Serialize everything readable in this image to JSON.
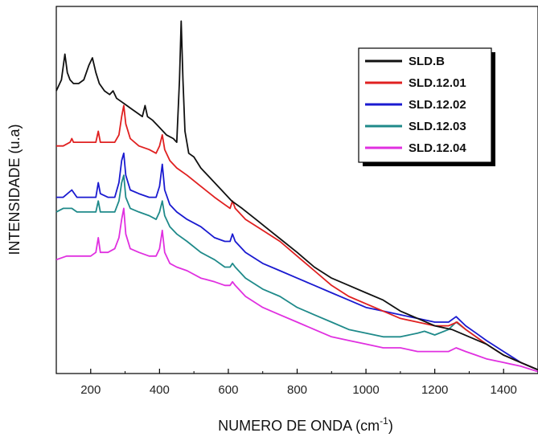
{
  "chart_data": {
    "type": "line",
    "xlabel": "NUMERO DE ONDA (cm",
    "xlabel_sup": "-1",
    "xlabel_suffix": ")",
    "ylabel": "INTENSIDADE (u.a)",
    "xlim": [
      100,
      1500
    ],
    "ylim": [
      0,
      100
    ],
    "y_ticks_shown": false,
    "x_ticks": [
      200,
      400,
      600,
      800,
      1000,
      1200,
      1400
    ],
    "x_tick_labels": [
      "200",
      "400",
      "600",
      "800",
      "1000",
      "1200",
      "1400"
    ],
    "grid": false,
    "legend_position": "top-right",
    "series": [
      {
        "name": "SLD.B",
        "color": "#111111",
        "points": [
          [
            100,
            77
          ],
          [
            115,
            80
          ],
          [
            125,
            87
          ],
          [
            132,
            82
          ],
          [
            140,
            80
          ],
          [
            150,
            79
          ],
          [
            165,
            79
          ],
          [
            180,
            80
          ],
          [
            195,
            84
          ],
          [
            205,
            86
          ],
          [
            215,
            82
          ],
          [
            225,
            79
          ],
          [
            240,
            77
          ],
          [
            255,
            76
          ],
          [
            265,
            77
          ],
          [
            275,
            75
          ],
          [
            290,
            74
          ],
          [
            305,
            73
          ],
          [
            320,
            72
          ],
          [
            335,
            71
          ],
          [
            350,
            70
          ],
          [
            358,
            73
          ],
          [
            365,
            70
          ],
          [
            380,
            69
          ],
          [
            400,
            67
          ],
          [
            420,
            65
          ],
          [
            440,
            64
          ],
          [
            450,
            63
          ],
          [
            458,
            80
          ],
          [
            463,
            96
          ],
          [
            468,
            80
          ],
          [
            474,
            66
          ],
          [
            485,
            60
          ],
          [
            500,
            59
          ],
          [
            520,
            56
          ],
          [
            550,
            53
          ],
          [
            580,
            50
          ],
          [
            610,
            47
          ],
          [
            640,
            45
          ],
          [
            680,
            42
          ],
          [
            720,
            39
          ],
          [
            760,
            36
          ],
          [
            800,
            33
          ],
          [
            850,
            29
          ],
          [
            900,
            26
          ],
          [
            950,
            24
          ],
          [
            1000,
            22
          ],
          [
            1050,
            20
          ],
          [
            1100,
            17
          ],
          [
            1150,
            15
          ],
          [
            1200,
            13
          ],
          [
            1250,
            12
          ],
          [
            1300,
            10
          ],
          [
            1350,
            8
          ],
          [
            1400,
            5
          ],
          [
            1450,
            3
          ],
          [
            1500,
            1
          ]
        ]
      },
      {
        "name": "SLD.12.01",
        "color": "#e02020",
        "points": [
          [
            100,
            62
          ],
          [
            120,
            62
          ],
          [
            140,
            63
          ],
          [
            145,
            64
          ],
          [
            150,
            63
          ],
          [
            170,
            63
          ],
          [
            200,
            63
          ],
          [
            215,
            63
          ],
          [
            222,
            66
          ],
          [
            228,
            63
          ],
          [
            250,
            63
          ],
          [
            270,
            63
          ],
          [
            282,
            65
          ],
          [
            290,
            70
          ],
          [
            296,
            73
          ],
          [
            302,
            68
          ],
          [
            315,
            64
          ],
          [
            340,
            62
          ],
          [
            370,
            61
          ],
          [
            390,
            60
          ],
          [
            400,
            62
          ],
          [
            408,
            65
          ],
          [
            415,
            61
          ],
          [
            430,
            58
          ],
          [
            450,
            56
          ],
          [
            480,
            54
          ],
          [
            520,
            51
          ],
          [
            560,
            48
          ],
          [
            590,
            46
          ],
          [
            605,
            45
          ],
          [
            612,
            47
          ],
          [
            620,
            45
          ],
          [
            650,
            42
          ],
          [
            700,
            39
          ],
          [
            750,
            36
          ],
          [
            800,
            32
          ],
          [
            850,
            28
          ],
          [
            900,
            24
          ],
          [
            950,
            21
          ],
          [
            1000,
            19
          ],
          [
            1050,
            17
          ],
          [
            1100,
            15
          ],
          [
            1150,
            14
          ],
          [
            1200,
            13
          ],
          [
            1240,
            13
          ],
          [
            1265,
            14
          ],
          [
            1290,
            12
          ],
          [
            1320,
            10
          ],
          [
            1350,
            8
          ],
          [
            1400,
            5
          ],
          [
            1450,
            3
          ],
          [
            1500,
            1
          ]
        ]
      },
      {
        "name": "SLD.12.02",
        "color": "#1a1ad0",
        "points": [
          [
            100,
            48
          ],
          [
            120,
            48
          ],
          [
            145,
            50
          ],
          [
            160,
            48
          ],
          [
            200,
            48
          ],
          [
            215,
            48
          ],
          [
            222,
            52
          ],
          [
            228,
            49
          ],
          [
            250,
            48
          ],
          [
            270,
            48
          ],
          [
            282,
            52
          ],
          [
            290,
            58
          ],
          [
            296,
            60
          ],
          [
            302,
            54
          ],
          [
            315,
            50
          ],
          [
            340,
            49
          ],
          [
            370,
            48
          ],
          [
            390,
            48
          ],
          [
            400,
            51
          ],
          [
            408,
            57
          ],
          [
            415,
            50
          ],
          [
            430,
            46
          ],
          [
            450,
            44
          ],
          [
            480,
            42
          ],
          [
            520,
            40
          ],
          [
            560,
            37
          ],
          [
            590,
            36
          ],
          [
            605,
            36
          ],
          [
            612,
            38
          ],
          [
            620,
            36
          ],
          [
            650,
            33
          ],
          [
            700,
            30
          ],
          [
            750,
            28
          ],
          [
            800,
            26
          ],
          [
            850,
            24
          ],
          [
            900,
            22
          ],
          [
            950,
            20
          ],
          [
            1000,
            18
          ],
          [
            1050,
            17
          ],
          [
            1100,
            16
          ],
          [
            1150,
            15
          ],
          [
            1200,
            14
          ],
          [
            1240,
            14
          ],
          [
            1262,
            15.5
          ],
          [
            1290,
            13
          ],
          [
            1320,
            11
          ],
          [
            1350,
            9
          ],
          [
            1400,
            6
          ],
          [
            1450,
            3
          ],
          [
            1500,
            1
          ]
        ]
      },
      {
        "name": "SLD.12.03",
        "color": "#1f8a8a",
        "points": [
          [
            100,
            44
          ],
          [
            120,
            45
          ],
          [
            145,
            45
          ],
          [
            160,
            44
          ],
          [
            200,
            44
          ],
          [
            215,
            44
          ],
          [
            222,
            47
          ],
          [
            228,
            44
          ],
          [
            250,
            44
          ],
          [
            270,
            44
          ],
          [
            282,
            47
          ],
          [
            290,
            52
          ],
          [
            296,
            54
          ],
          [
            302,
            48
          ],
          [
            315,
            45
          ],
          [
            340,
            44
          ],
          [
            370,
            43
          ],
          [
            390,
            42
          ],
          [
            400,
            44
          ],
          [
            408,
            47
          ],
          [
            415,
            43
          ],
          [
            430,
            40
          ],
          [
            450,
            38
          ],
          [
            480,
            36
          ],
          [
            520,
            33
          ],
          [
            560,
            31
          ],
          [
            590,
            29
          ],
          [
            605,
            29
          ],
          [
            612,
            30
          ],
          [
            620,
            29
          ],
          [
            650,
            26
          ],
          [
            700,
            23
          ],
          [
            750,
            21
          ],
          [
            800,
            18
          ],
          [
            850,
            16
          ],
          [
            900,
            14
          ],
          [
            950,
            12
          ],
          [
            1000,
            11
          ],
          [
            1050,
            10
          ],
          [
            1100,
            10
          ],
          [
            1150,
            11
          ],
          [
            1170,
            11.5
          ],
          [
            1200,
            10.5
          ],
          [
            1240,
            12
          ],
          [
            1262,
            14
          ],
          [
            1290,
            12
          ],
          [
            1320,
            10
          ],
          [
            1350,
            8
          ],
          [
            1400,
            5
          ],
          [
            1450,
            3
          ],
          [
            1500,
            1
          ]
        ]
      },
      {
        "name": "SLD.12.04",
        "color": "#e030e0",
        "points": [
          [
            100,
            31
          ],
          [
            130,
            32
          ],
          [
            160,
            32
          ],
          [
            200,
            32
          ],
          [
            215,
            33
          ],
          [
            222,
            37
          ],
          [
            228,
            33
          ],
          [
            250,
            33
          ],
          [
            270,
            34
          ],
          [
            282,
            37
          ],
          [
            290,
            42
          ],
          [
            296,
            45
          ],
          [
            302,
            38
          ],
          [
            315,
            34
          ],
          [
            340,
            33
          ],
          [
            370,
            32
          ],
          [
            390,
            32
          ],
          [
            400,
            34
          ],
          [
            408,
            39
          ],
          [
            415,
            33
          ],
          [
            430,
            30
          ],
          [
            450,
            29
          ],
          [
            480,
            28
          ],
          [
            520,
            26
          ],
          [
            560,
            25
          ],
          [
            590,
            24
          ],
          [
            605,
            24
          ],
          [
            612,
            25
          ],
          [
            620,
            24
          ],
          [
            650,
            21
          ],
          [
            700,
            18
          ],
          [
            750,
            16
          ],
          [
            800,
            14
          ],
          [
            850,
            12
          ],
          [
            900,
            10
          ],
          [
            950,
            9
          ],
          [
            1000,
            8
          ],
          [
            1050,
            7
          ],
          [
            1100,
            7
          ],
          [
            1150,
            6
          ],
          [
            1200,
            6
          ],
          [
            1240,
            6
          ],
          [
            1262,
            7
          ],
          [
            1290,
            6
          ],
          [
            1320,
            5
          ],
          [
            1350,
            4
          ],
          [
            1400,
            3
          ],
          [
            1450,
            2
          ],
          [
            1500,
            0.5
          ]
        ]
      }
    ]
  }
}
